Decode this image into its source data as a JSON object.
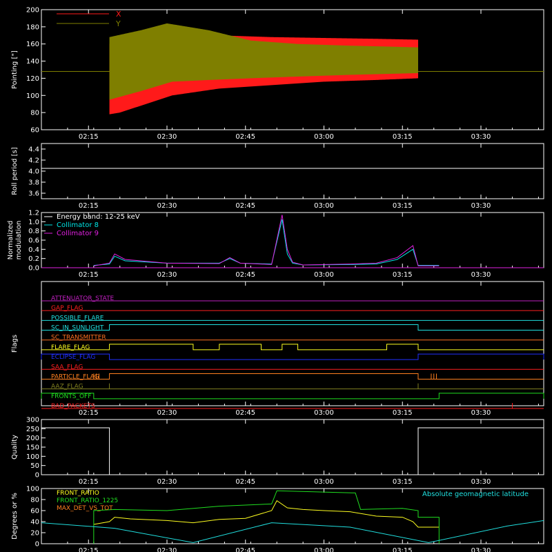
{
  "time_ticks": [
    "02:15",
    "02:30",
    "02:45",
    "03:00",
    "03:15",
    "03:30"
  ],
  "chart_data": [
    {
      "id": "pointing",
      "type": "line",
      "ylabel": "Pointing [\"]",
      "ylim": [
        60,
        200
      ],
      "yticks": [
        60,
        80,
        100,
        120,
        140,
        160,
        180,
        200
      ],
      "xlim": [
        "02:06",
        "03:42"
      ],
      "legend": {
        "placement": "top-left",
        "entries": [
          {
            "name": "X",
            "color": "#ff1a1a"
          },
          {
            "name": "Y",
            "color": "#7f7f00"
          }
        ]
      },
      "series": [
        {
          "name": "X",
          "color": "#ff1a1a",
          "upper": {
            "x": [
              "02:19",
              "02:25",
              "02:31",
              "02:40",
              "02:50",
              "03:00",
              "03:10",
              "03:18"
            ],
            "y": [
              160,
              168,
              172,
              170,
              168,
              167,
              166,
              165
            ]
          },
          "lower": {
            "x": [
              "02:19",
              "02:21",
              "02:25",
              "02:31",
              "02:40",
              "02:50",
              "03:00",
              "03:10",
              "03:18"
            ],
            "y": [
              78,
              80,
              88,
              100,
              108,
              112,
              116,
              118,
              120
            ]
          }
        },
        {
          "name": "Y",
          "color": "#7f7f00",
          "upper": {
            "x": [
              "02:19",
              "02:25",
              "02:30",
              "02:38",
              "02:46",
              "02:55",
              "03:05",
              "03:12",
              "03:18"
            ],
            "y": [
              168,
              176,
              184,
              176,
              164,
              160,
              158,
              157,
              156
            ]
          },
          "lower": {
            "x": [
              "02:19",
              "02:25",
              "02:31",
              "02:38",
              "02:46",
              "02:55",
              "03:05",
              "03:18"
            ],
            "y": [
              95,
              105,
              116,
              118,
              120,
              122,
              124,
              126
            ]
          }
        }
      ],
      "baseline": {
        "y": 128,
        "color": "#7f7f00"
      }
    },
    {
      "id": "roll",
      "type": "line",
      "ylabel": "Roll period [s]",
      "ylim": [
        3.5,
        4.5
      ],
      "yticks": [
        "3.6",
        "3.8",
        "4.0",
        "4.2",
        "4.4"
      ],
      "series": [
        {
          "name": "",
          "color": "#ffffff",
          "x": [
            "02:06",
            "03:42"
          ],
          "y": [
            4.05,
            4.05
          ]
        }
      ]
    },
    {
      "id": "modulation",
      "type": "line",
      "ylabel_lines": [
        "Normalized",
        "modulation"
      ],
      "ylim": [
        0,
        1.2
      ],
      "yticks": [
        "0.0",
        "0.2",
        "0.4",
        "0.6",
        "0.8",
        "1.0",
        "1.2"
      ],
      "legend": {
        "placement": "top-left",
        "entries": [
          {
            "name": "Energy band: 12-25 keV",
            "color": "#ffffff"
          },
          {
            "name": "Collimator 8",
            "color": "#00e5e5"
          },
          {
            "name": "Collimator 9",
            "color": "#e020e0"
          }
        ]
      },
      "series": [
        {
          "name": "Collimator 8",
          "color": "#00e5e5",
          "x": [
            "02:16",
            "02:19",
            "02:20",
            "02:22",
            "02:30",
            "02:40",
            "02:42",
            "02:44",
            "02:50",
            "02:52",
            "02:53",
            "02:54",
            "02:56",
            "03:05",
            "03:10",
            "03:14",
            "03:17",
            "03:18",
            "03:22"
          ],
          "y": [
            0.05,
            0.08,
            0.25,
            0.15,
            0.1,
            0.1,
            0.2,
            0.1,
            0.08,
            1.05,
            0.3,
            0.1,
            0.06,
            0.07,
            0.08,
            0.18,
            0.4,
            0.05,
            0.05
          ]
        },
        {
          "name": "Collimator 9",
          "color": "#e020e0",
          "x": [
            "02:16",
            "02:19",
            "02:20",
            "02:22",
            "02:30",
            "02:40",
            "02:42",
            "02:44",
            "02:50",
            "02:52",
            "02:53",
            "02:54",
            "02:56",
            "03:05",
            "03:10",
            "03:14",
            "03:17",
            "03:18",
            "03:22"
          ],
          "y": [
            0.04,
            0.1,
            0.3,
            0.18,
            0.1,
            0.09,
            0.22,
            0.1,
            0.07,
            1.15,
            0.4,
            0.12,
            0.06,
            0.08,
            0.1,
            0.22,
            0.48,
            0.04,
            0.04
          ]
        }
      ],
      "baseline": {
        "y": 0,
        "color": "#e020e0"
      }
    },
    {
      "id": "flags",
      "type": "line",
      "ylabel": "Flags",
      "rows": [
        {
          "name": "ATTENUATOR_STATE",
          "color": "#c020c0",
          "segments": []
        },
        {
          "name": "GAP_FLAG",
          "color": "#ff2020",
          "segments": []
        },
        {
          "name": "POSSIBLE_FLARE",
          "color": "#20e0e0",
          "segments": []
        },
        {
          "name": "SC_IN_SUNLIGHT",
          "color": "#20e0e0",
          "segments": [
            [
              "02:19",
              "03:18"
            ]
          ]
        },
        {
          "name": "SC_TRANSMITTER",
          "color": "#ff7020",
          "segments": []
        },
        {
          "name": "FLARE_FLAG",
          "color": "#ffff20",
          "segments": [
            [
              "02:19",
              "02:35"
            ],
            [
              "02:40",
              "02:48"
            ],
            [
              "02:52",
              "02:55"
            ],
            [
              "03:12",
              "03:18"
            ]
          ]
        },
        {
          "name": "ECLIPSE_FLAG",
          "color": "#2030ff",
          "segments": [
            [
              "02:06",
              "02:19"
            ],
            [
              "03:18",
              "03:42"
            ]
          ]
        },
        {
          "name": "SAA_FLAG",
          "color": "#ff2020",
          "segments": []
        },
        {
          "name": "PARTICLE_FLAG",
          "color": "#ff8020",
          "segments": [
            [
              "02:19",
              "03:18"
            ]
          ],
          "spikes": [
            "02:16",
            "02:16.5",
            "02:17",
            "03:20.5",
            "03:21",
            "03:21.5"
          ]
        },
        {
          "name": "AAZ_FLAG",
          "color": "#808020",
          "segments": [],
          "spikes": [
            "02:19",
            "03:18"
          ]
        },
        {
          "name": "FRONTS_OFF",
          "color": "#20e020",
          "segments": [
            [
              "02:06",
              "02:16"
            ],
            [
              "03:22",
              "03:42"
            ]
          ]
        },
        {
          "name": "BAD_PACKETS",
          "color": "#ff2020",
          "segments": [],
          "spikes": [
            "03:36"
          ]
        }
      ]
    },
    {
      "id": "quality",
      "type": "line",
      "ylabel": "Quality",
      "ylim": [
        0,
        300
      ],
      "yticks": [
        "0",
        "50",
        "100",
        "150",
        "200",
        "250",
        "300"
      ],
      "series": [
        {
          "name": "",
          "color": "#ffffff",
          "x": [
            "02:06",
            "02:19",
            "02:19",
            "03:18",
            "03:18",
            "03:42"
          ],
          "y": [
            255,
            255,
            0,
            0,
            255,
            255
          ]
        }
      ]
    },
    {
      "id": "front",
      "type": "line",
      "ylabel": "Degrees or %",
      "ylim": [
        0,
        100
      ],
      "yticks": [
        "0",
        "20",
        "40",
        "60",
        "80",
        "100"
      ],
      "legend": {
        "placement": "top-left",
        "entries": [
          {
            "name": "FRONT_RATIO",
            "color": "#ffff20"
          },
          {
            "name": "FRONT_RATIO_1225",
            "color": "#20e020"
          },
          {
            "name": "MAX_DET_VS_TOT",
            "color": "#ff8020"
          }
        ]
      },
      "legend_right": {
        "name": "Absolute geomagnetic latitude",
        "color": "#20e0e0"
      },
      "series": [
        {
          "name": "FRONT_RATIO",
          "color": "#ffff20",
          "x": [
            "02:16",
            "02:19",
            "02:20",
            "02:23",
            "02:30",
            "02:35",
            "02:40",
            "02:45",
            "02:50",
            "02:51",
            "02:53",
            "02:56",
            "03:00",
            "03:05",
            "03:10",
            "03:15",
            "03:17",
            "03:18",
            "03:22"
          ],
          "y": [
            35,
            40,
            48,
            45,
            42,
            38,
            44,
            46,
            60,
            78,
            65,
            62,
            60,
            58,
            50,
            48,
            40,
            30,
            30
          ]
        },
        {
          "name": "FRONT_RATIO_1225",
          "color": "#20e020",
          "x": [
            "02:16",
            "02:16",
            "02:20",
            "02:30",
            "02:40",
            "02:45",
            "02:50",
            "02:51",
            "03:06",
            "03:07",
            "03:15",
            "03:18",
            "03:18",
            "03:22",
            "03:22"
          ],
          "y": [
            0,
            60,
            62,
            60,
            68,
            70,
            72,
            96,
            92,
            62,
            64,
            60,
            48,
            48,
            0
          ]
        },
        {
          "name": "Absolute geomagnetic latitude",
          "color": "#20e0e0",
          "x": [
            "02:06",
            "02:20",
            "02:35",
            "02:50",
            "03:05",
            "03:20",
            "03:35",
            "03:42"
          ],
          "y": [
            38,
            28,
            2,
            38,
            30,
            2,
            32,
            42
          ]
        }
      ]
    }
  ]
}
